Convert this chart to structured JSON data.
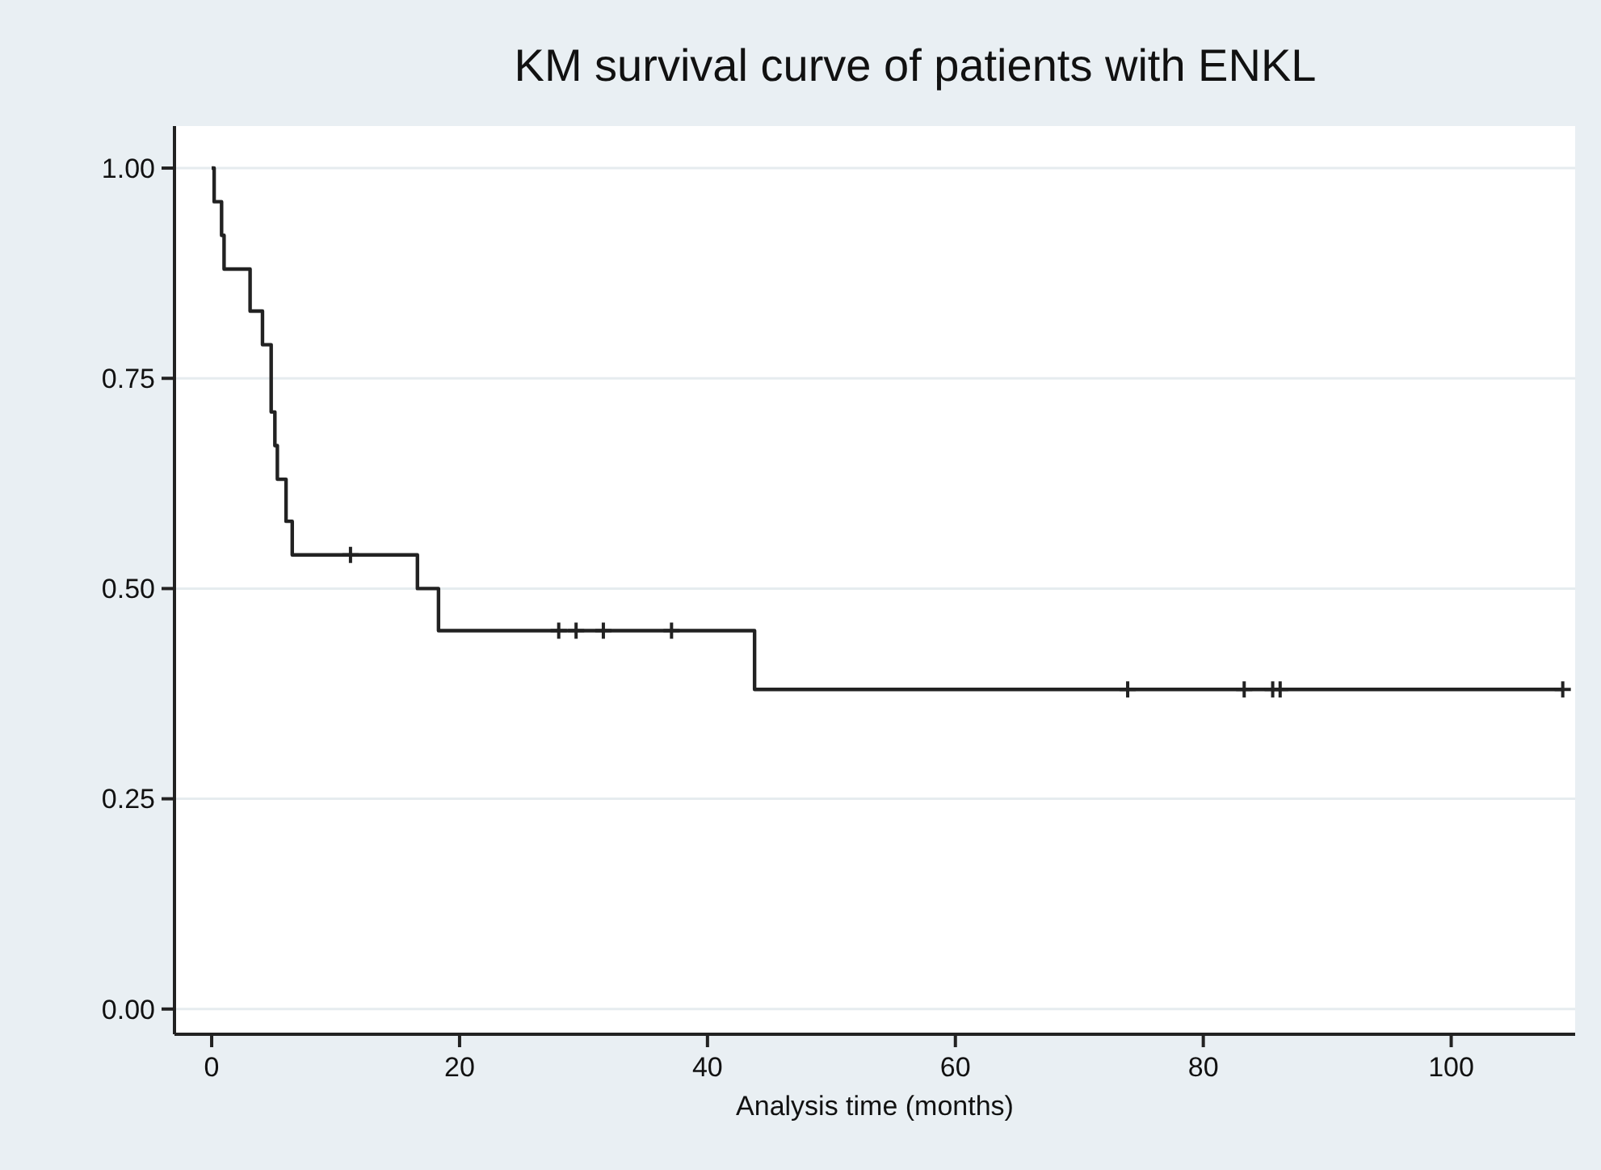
{
  "chart_data": {
    "type": "step",
    "title": "KM survival curve of patients with ENKL",
    "xlabel": "Analysis time (months)",
    "xlim": [
      -3,
      110
    ],
    "xticks": [
      0,
      20,
      40,
      60,
      80,
      100
    ],
    "ylim": [
      -0.03,
      1.05
    ],
    "yticks": [
      {
        "value": 0,
        "label": "0.00"
      },
      {
        "value": 0.25,
        "label": "0.25"
      },
      {
        "value": 0.5,
        "label": "0.50"
      },
      {
        "value": 0.75,
        "label": "0.75"
      },
      {
        "value": 1,
        "label": "1.00"
      }
    ],
    "grid": "y",
    "series": [
      {
        "color": "#222222",
        "x": [
          0,
          0.2,
          0.8,
          1.0,
          3.1,
          4.1,
          4.8,
          5.1,
          5.3,
          6.0,
          6.5,
          16.6,
          18.3,
          43.8,
          109
        ],
        "values": [
          1,
          0.96,
          0.92,
          0.88,
          0.83,
          0.79,
          0.71,
          0.67,
          0.63,
          0.58,
          0.54,
          0.5,
          0.45,
          0.38,
          0.38
        ]
      },
      {
        "type": "scatter",
        "marker": "cross",
        "color": "#222222",
        "x": [
          11.2,
          28.0,
          29.4,
          31.6,
          37.1,
          73.9,
          83.3,
          85.6,
          86.2,
          109
        ],
        "values": [
          0.54,
          0.45,
          0.45,
          0.45,
          0.45,
          0.38,
          0.38,
          0.38,
          0.38,
          0.38
        ]
      }
    ]
  }
}
